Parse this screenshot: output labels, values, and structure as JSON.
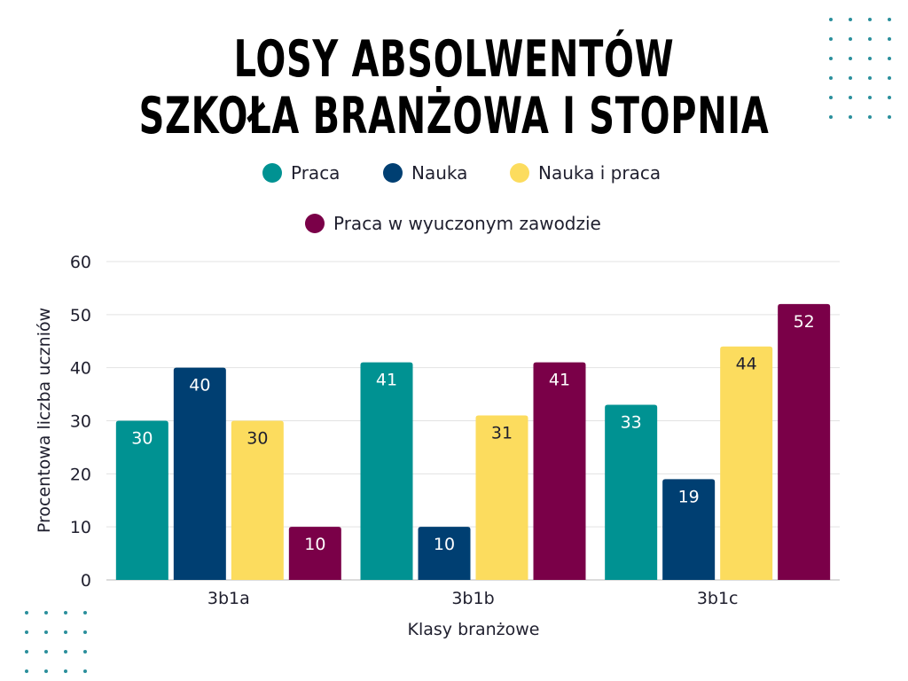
{
  "title": {
    "line1": "LOSY ABSOLWENTÓW",
    "line2": "SZKOŁA BRANŻOWA I STOPNIA"
  },
  "legend": [
    {
      "label": "Praca",
      "color": "#009292"
    },
    {
      "label": "Nauka",
      "color": "#003f72"
    },
    {
      "label": "Nauka i praca",
      "color": "#fcdc5e"
    },
    {
      "label": "Praca w wyuczonym zawodzie",
      "color": "#7a0048"
    }
  ],
  "chart_data": {
    "type": "bar",
    "categories": [
      "3b1a",
      "3b1b",
      "3b1c"
    ],
    "series": [
      {
        "name": "Praca",
        "values": [
          30,
          41,
          33
        ],
        "color": "#009292",
        "label_color": "#ffffff"
      },
      {
        "name": "Nauka",
        "values": [
          40,
          10,
          19
        ],
        "color": "#003f72",
        "label_color": "#ffffff"
      },
      {
        "name": "Nauka i praca",
        "values": [
          30,
          31,
          44
        ],
        "color": "#fcdc5e",
        "label_color": "#1f1f2e"
      },
      {
        "name": "Praca w wyuczonym zawodzie",
        "values": [
          10,
          41,
          52
        ],
        "color": "#7a0048",
        "label_color": "#ffffff"
      }
    ],
    "title": "LOSY ABSOLWENTÓW SZKOŁA BRANŻOWA I STOPNIA",
    "xlabel": "Klasy branżowe",
    "ylabel": "Procentowa liczba uczniów",
    "ylim": [
      0,
      60
    ],
    "yticks": [
      0,
      10,
      20,
      30,
      40,
      50,
      60
    ],
    "grid": true,
    "legend_position": "top"
  },
  "decoration": {
    "dot_color": "#2a8f9c"
  }
}
